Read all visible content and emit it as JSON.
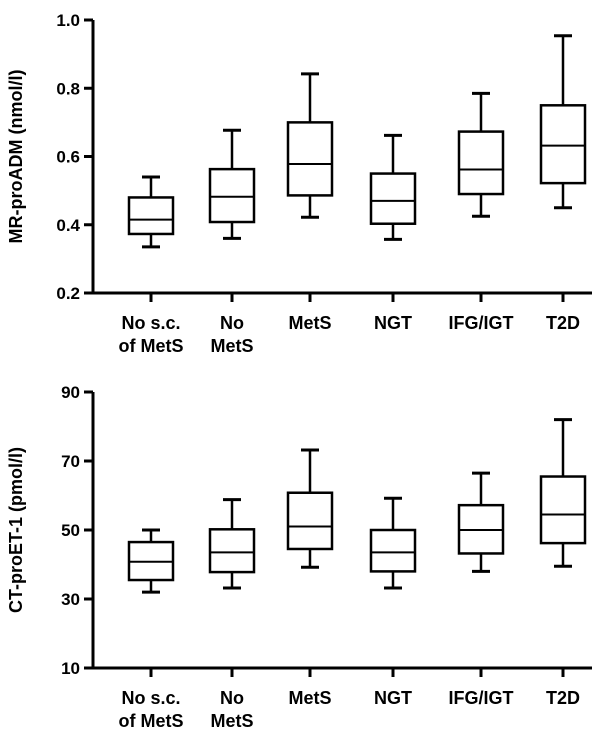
{
  "chart_data": [
    {
      "type": "box",
      "title": "",
      "xlabel": "",
      "ylabel": "MR-proADM (nmol/l)",
      "ylim": [
        0.2,
        1.0
      ],
      "yticks": [
        "0.2",
        "0.4",
        "0.6",
        "0.8",
        "1.0"
      ],
      "categories": [
        [
          "No s.c.",
          "of MetS"
        ],
        [
          "No",
          "MetS"
        ],
        [
          "MetS"
        ],
        [
          "NGT"
        ],
        [
          "IFG/IGT"
        ],
        [
          "T2D"
        ]
      ],
      "boxes": [
        {
          "min": 0.335,
          "q1": 0.373,
          "median": 0.415,
          "q3": 0.48,
          "max": 0.54
        },
        {
          "min": 0.36,
          "q1": 0.408,
          "median": 0.482,
          "q3": 0.563,
          "max": 0.677
        },
        {
          "min": 0.422,
          "q1": 0.486,
          "median": 0.578,
          "q3": 0.7,
          "max": 0.842
        },
        {
          "min": 0.357,
          "q1": 0.403,
          "median": 0.47,
          "q3": 0.55,
          "max": 0.662
        },
        {
          "min": 0.425,
          "q1": 0.49,
          "median": 0.562,
          "q3": 0.673,
          "max": 0.785
        },
        {
          "min": 0.45,
          "q1": 0.522,
          "median": 0.632,
          "q3": 0.75,
          "max": 0.954
        }
      ]
    },
    {
      "type": "box",
      "title": "",
      "xlabel": "",
      "ylabel": "CT-proET-1 (pmol/l)",
      "ylim": [
        10,
        90
      ],
      "yticks": [
        "10",
        "30",
        "50",
        "70",
        "90"
      ],
      "categories": [
        [
          "No s.c.",
          "of MetS"
        ],
        [
          "No",
          "MetS"
        ],
        [
          "MetS"
        ],
        [
          "NGT"
        ],
        [
          "IFG/IGT"
        ],
        [
          "T2D"
        ]
      ],
      "boxes": [
        {
          "min": 32,
          "q1": 35.5,
          "median": 40.8,
          "q3": 46.5,
          "max": 50
        },
        {
          "min": 33.2,
          "q1": 37.8,
          "median": 43.5,
          "q3": 50.2,
          "max": 58.8
        },
        {
          "min": 39.2,
          "q1": 44.5,
          "median": 51,
          "q3": 60.8,
          "max": 73.2
        },
        {
          "min": 33.2,
          "q1": 38,
          "median": 43.5,
          "q3": 50,
          "max": 59.2
        },
        {
          "min": 38,
          "q1": 43.2,
          "median": 50,
          "q3": 57.2,
          "max": 66.5
        },
        {
          "min": 39.5,
          "q1": 46.2,
          "median": 54.5,
          "q3": 65.5,
          "max": 82
        }
      ]
    }
  ]
}
